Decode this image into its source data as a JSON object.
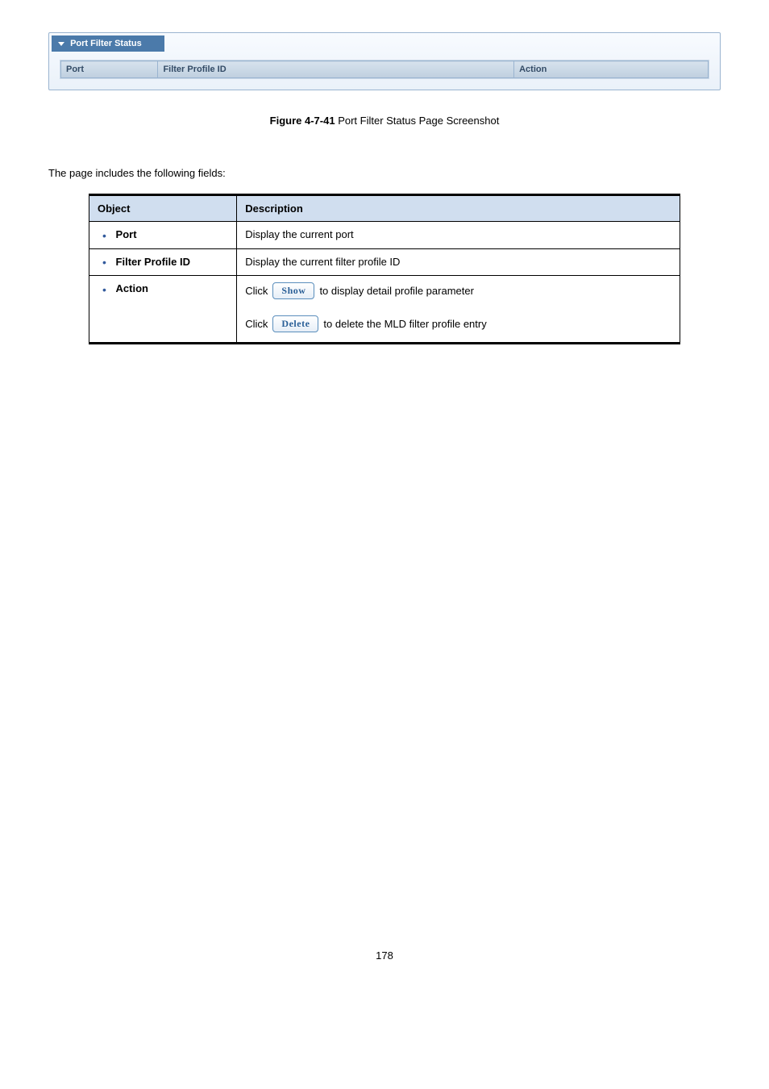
{
  "panel": {
    "title": "Port Filter Status",
    "columns": [
      "Port",
      "Filter Profile ID",
      "Action"
    ]
  },
  "figure": {
    "number": "Figure 4-7-41",
    "caption": "Port Filter Status Page Screenshot"
  },
  "intro": "The page includes the following fields:",
  "objTable": {
    "headers": [
      "Object",
      "Description"
    ],
    "rows": [
      {
        "field": "Port",
        "desc": "Display the current port"
      },
      {
        "field": "Filter Profile ID",
        "desc": "Display the current filter profile ID"
      }
    ],
    "actionField": "Action",
    "actionLines": [
      {
        "pre": "Click",
        "btn": "Show",
        "post": "to display detail profile parameter"
      },
      {
        "pre": "Click",
        "btn": "Delete",
        "post": "to delete the MLD filter profile entry"
      }
    ]
  },
  "pageNumber": "178"
}
